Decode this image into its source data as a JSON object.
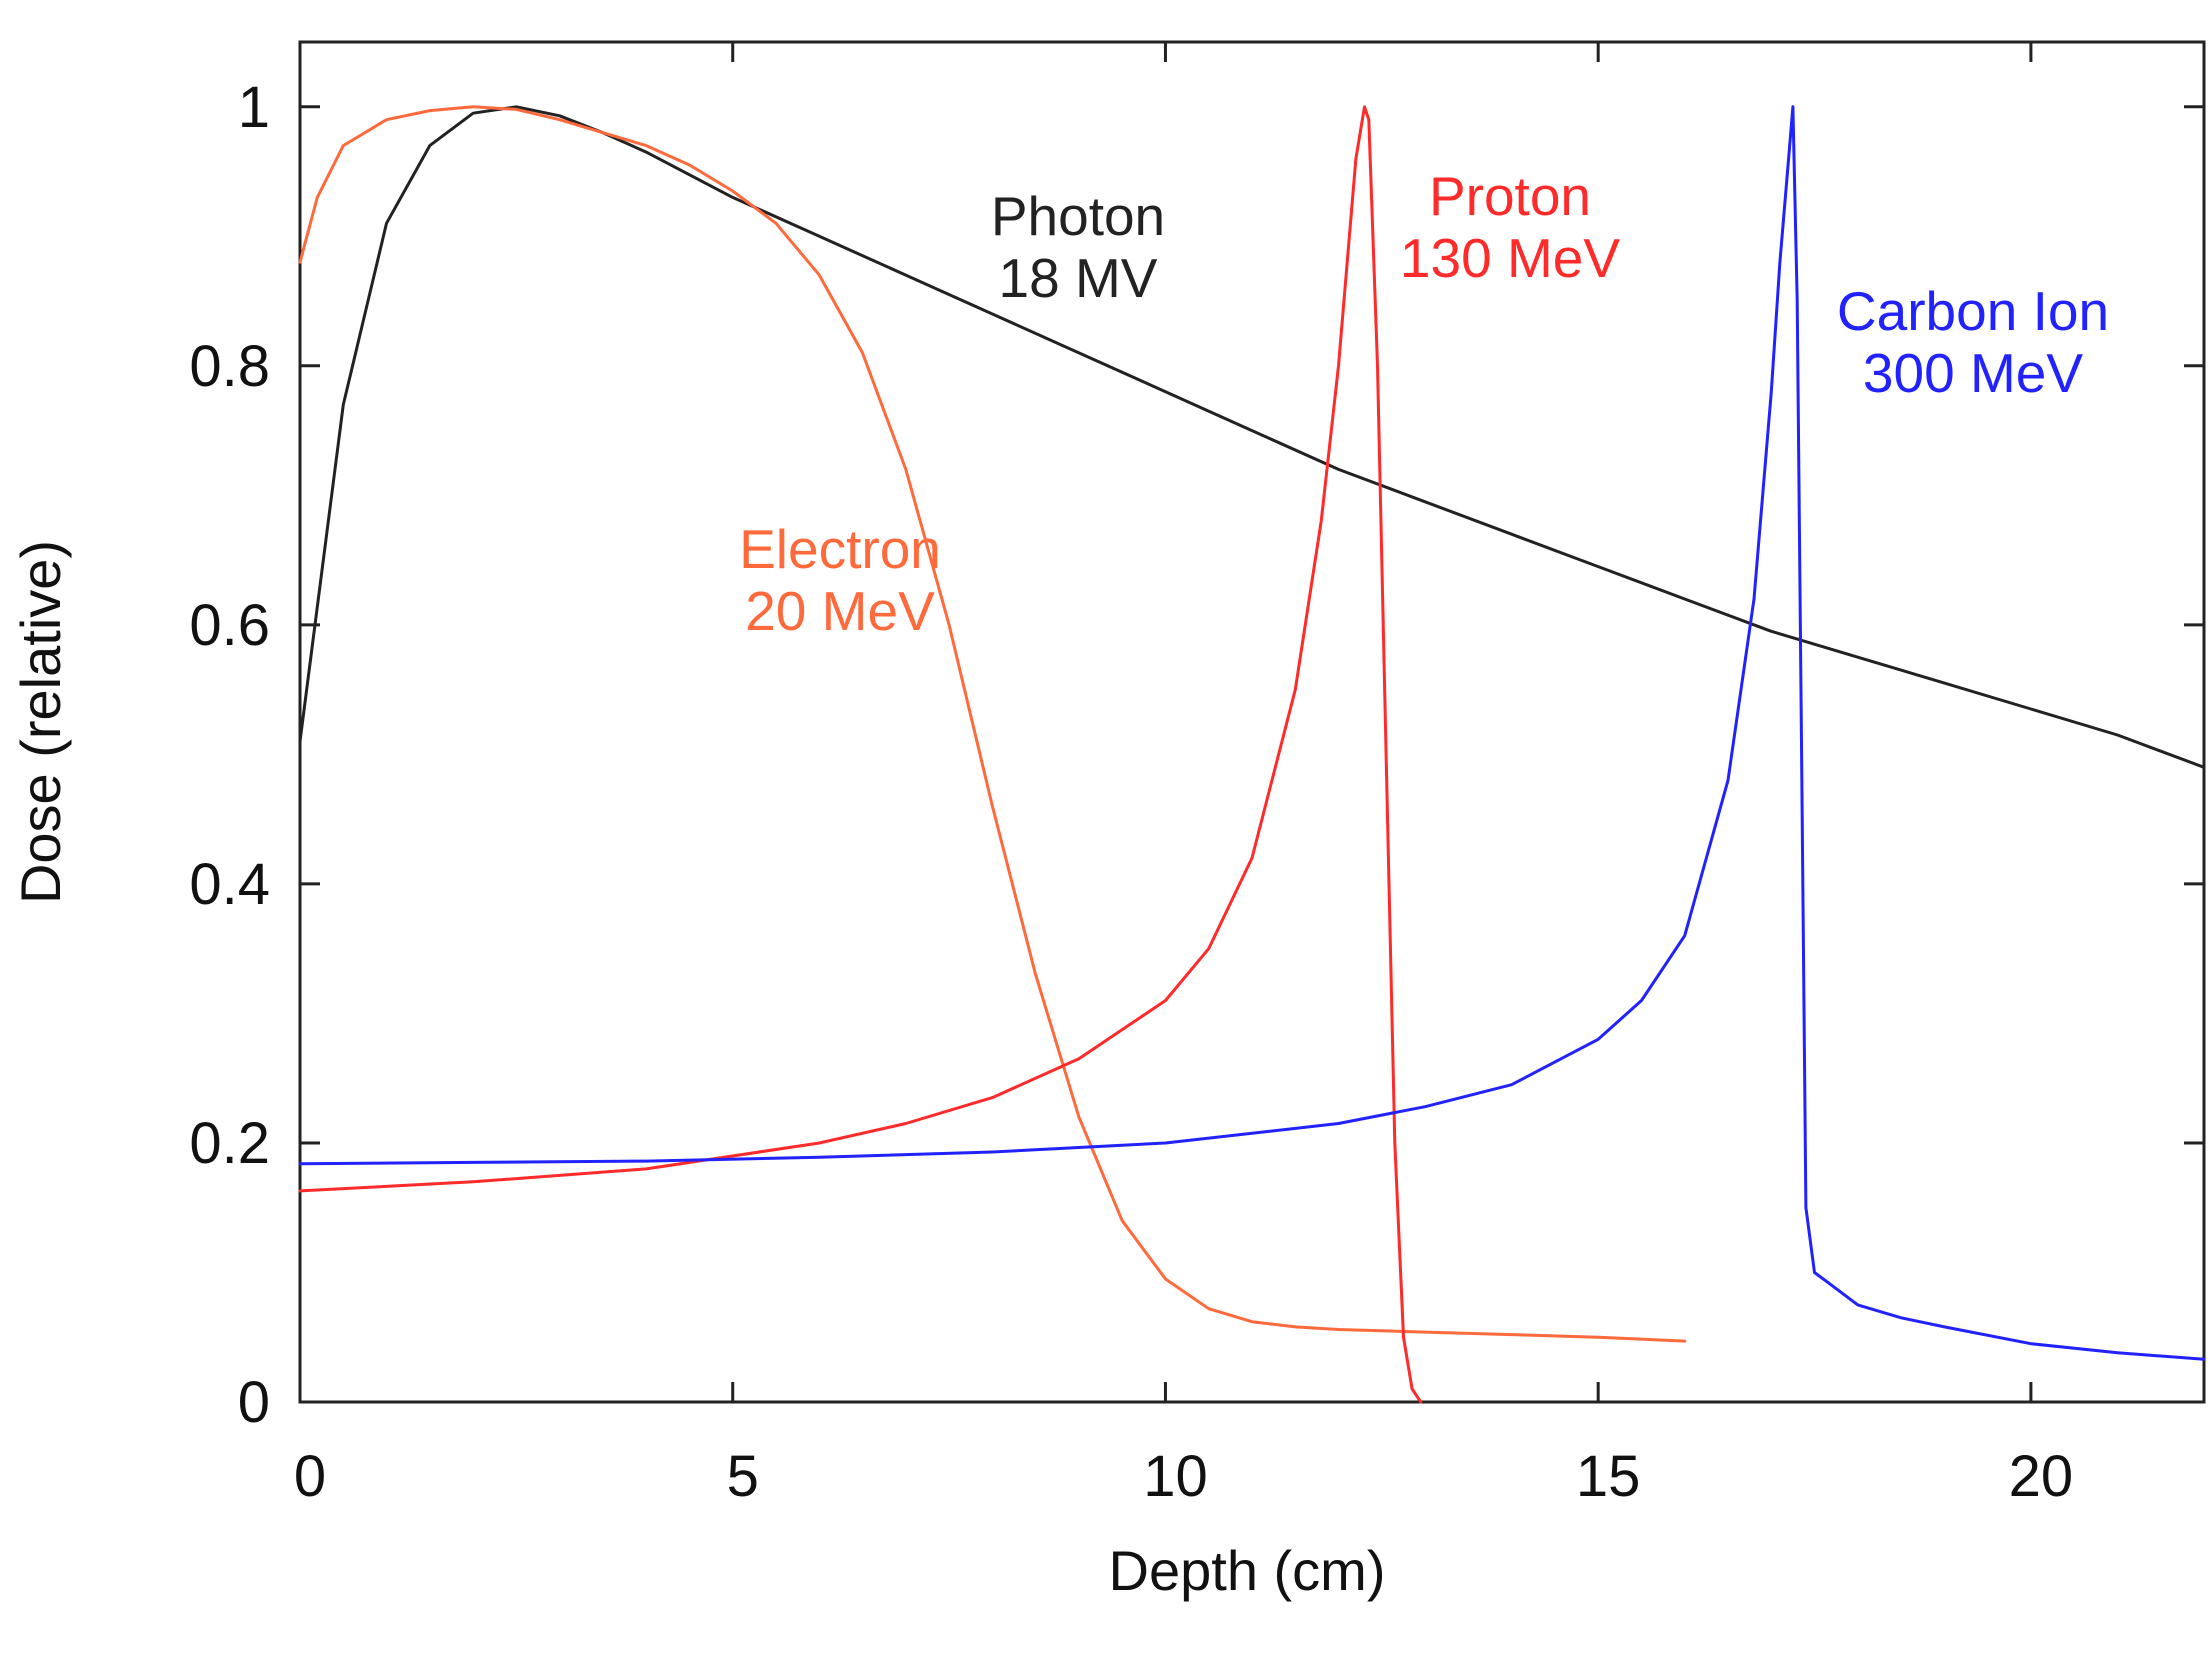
{
  "chart_data": {
    "type": "line",
    "title": "",
    "xlabel": "Depth (cm)",
    "ylabel": "Dose (relative)",
    "xlim": [
      0,
      22
    ],
    "ylim": [
      0,
      1.05
    ],
    "xticks": [
      0,
      5,
      10,
      15,
      20
    ],
    "xtick_labels": [
      "0",
      "5",
      "10",
      "15",
      "20"
    ],
    "yticks": [
      0,
      0.2,
      0.4,
      0.6,
      0.8,
      1
    ],
    "ytick_labels": [
      "0",
      "0.2",
      "0.4",
      "0.6",
      "0.8",
      "1"
    ],
    "grid": false,
    "series": [
      {
        "key": "photon",
        "name": "Photon 18 MV",
        "label_lines": [
          "Photon",
          "18 MV"
        ],
        "color": "#222222",
        "x": [
          0,
          0.5,
          1,
          1.5,
          2,
          2.5,
          3,
          3.5,
          4,
          5,
          6,
          7,
          8,
          9,
          10,
          11,
          12,
          13,
          14,
          15,
          16,
          17,
          18,
          19,
          20,
          21,
          22
        ],
        "y": [
          0.51,
          0.77,
          0.91,
          0.97,
          0.995,
          1.0,
          0.993,
          0.98,
          0.965,
          0.93,
          0.9,
          0.87,
          0.84,
          0.81,
          0.78,
          0.75,
          0.72,
          0.695,
          0.67,
          0.645,
          0.62,
          0.595,
          0.575,
          0.555,
          0.535,
          0.515,
          0.49
        ]
      },
      {
        "key": "electron",
        "name": "Electron 20 MeV",
        "label_lines": [
          "Electron",
          "20 MeV"
        ],
        "color": "#ff6a3d",
        "x": [
          0,
          0.2,
          0.5,
          1,
          1.5,
          2,
          2.5,
          3,
          3.5,
          4,
          4.5,
          5,
          5.5,
          6,
          6.5,
          7,
          7.5,
          8,
          8.5,
          9,
          9.5,
          10,
          10.5,
          11,
          11.5,
          12,
          13,
          14,
          15,
          16
        ],
        "y": [
          0.88,
          0.93,
          0.97,
          0.99,
          0.997,
          1.0,
          0.998,
          0.99,
          0.98,
          0.97,
          0.955,
          0.935,
          0.91,
          0.87,
          0.81,
          0.72,
          0.6,
          0.46,
          0.33,
          0.22,
          0.14,
          0.095,
          0.072,
          0.062,
          0.058,
          0.056,
          0.054,
          0.052,
          0.05,
          0.047
        ]
      },
      {
        "key": "proton",
        "name": "Proton 130 MeV",
        "label_lines": [
          "Proton",
          "130 MeV"
        ],
        "color": "#ff2a2a",
        "x": [
          0,
          2,
          4,
          6,
          7,
          8,
          9,
          10,
          10.5,
          11,
          11.5,
          11.8,
          12.0,
          12.1,
          12.2,
          12.3,
          12.35,
          12.45,
          12.55,
          12.65,
          12.75,
          12.85,
          12.95
        ],
        "y": [
          0.163,
          0.17,
          0.18,
          0.2,
          0.215,
          0.235,
          0.265,
          0.31,
          0.35,
          0.42,
          0.55,
          0.68,
          0.8,
          0.88,
          0.96,
          1.0,
          0.99,
          0.8,
          0.5,
          0.2,
          0.05,
          0.01,
          0.0
        ]
      },
      {
        "key": "carbon",
        "name": "Carbon Ion 300 MeV",
        "label_lines": [
          "Carbon Ion",
          "300 MeV"
        ],
        "color": "#2222ff",
        "x": [
          0,
          2,
          4,
          6,
          8,
          10,
          12,
          13,
          14,
          15,
          15.5,
          16,
          16.5,
          16.8,
          17.0,
          17.1,
          17.2,
          17.25,
          17.3,
          17.35,
          17.4,
          17.5,
          17.7,
          18,
          18.5,
          19,
          20,
          21,
          22
        ],
        "y": [
          0.184,
          0.185,
          0.186,
          0.189,
          0.193,
          0.2,
          0.215,
          0.228,
          0.245,
          0.28,
          0.31,
          0.36,
          0.48,
          0.62,
          0.78,
          0.88,
          0.96,
          1.0,
          0.85,
          0.5,
          0.15,
          0.1,
          0.09,
          0.075,
          0.065,
          0.058,
          0.045,
          0.038,
          0.033
        ]
      }
    ]
  }
}
